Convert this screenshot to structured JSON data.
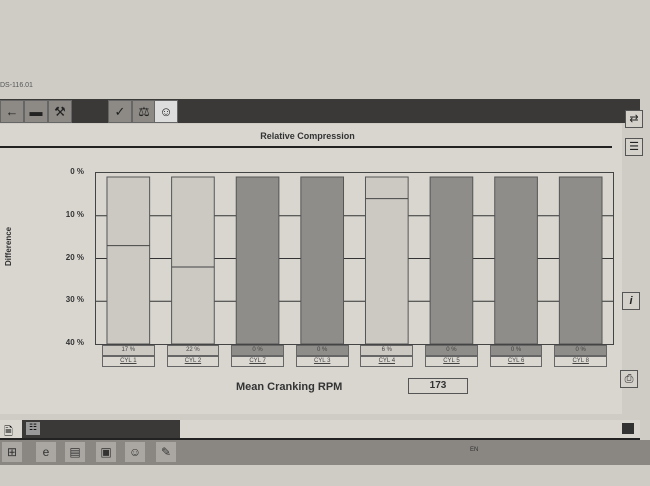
{
  "window": {
    "title": "DS-116.01"
  },
  "toolbar": {
    "icons": [
      "back-arrow-icon",
      "car-icon",
      "tools-icon",
      "checkmark-icon",
      "scale-icon",
      "mechanic-icon"
    ]
  },
  "heading": "Relative Compression",
  "side_icons": [
    "list-icon",
    "info-icon",
    "print-icon",
    "connect-icon"
  ],
  "chart_data": {
    "type": "bar",
    "ylabel": "Difference",
    "yticks": [
      "0 %",
      "10 %",
      "20 %",
      "30 %",
      "40 %"
    ],
    "ylim": [
      0,
      40
    ],
    "y_axis_inverted": true,
    "grid": true,
    "categories": [
      "CYL 1",
      "CYL 2",
      "CYL 7",
      "CYL 3",
      "CYL 4",
      "CYL 5",
      "CYL 6",
      "CYL 8"
    ],
    "values": [
      17,
      22,
      0,
      0,
      6,
      0,
      0,
      0
    ],
    "value_labels": [
      "17 %",
      "22 %",
      "0 %",
      "0 %",
      "6 %",
      "0 %",
      "0 %",
      "0 %"
    ],
    "colors": {
      "nonzero": "#ccc9c3",
      "zero": "#8f8d89"
    }
  },
  "mean_rpm": {
    "label": "Mean Cranking RPM",
    "value": "173"
  },
  "taskbar": {
    "language": "EN"
  }
}
